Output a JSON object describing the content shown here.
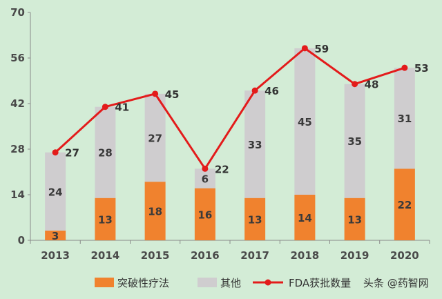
{
  "chart_data": {
    "type": "bar",
    "categories": [
      "2013",
      "2014",
      "2015",
      "2016",
      "2017",
      "2018",
      "2019",
      "2020"
    ],
    "series": [
      {
        "name": "突破性疗法",
        "kind": "stacked-bar",
        "color": "#f0822e",
        "values": [
          3,
          13,
          18,
          16,
          13,
          14,
          13,
          22
        ]
      },
      {
        "name": "其他",
        "kind": "stacked-bar",
        "color": "#cfcdcf",
        "values": [
          24,
          28,
          27,
          6,
          33,
          45,
          35,
          31
        ]
      },
      {
        "name": "FDA获批数量",
        "kind": "line",
        "color": "#e31b1b",
        "values": [
          27,
          41,
          45,
          22,
          46,
          59,
          48,
          53
        ]
      }
    ],
    "yticks": [
      "0",
      "14",
      "28",
      "42",
      "56",
      "70"
    ],
    "ylim": [
      0,
      70
    ],
    "grid": false,
    "legend_position": "bottom"
  },
  "watermark": "头条 @药智网"
}
